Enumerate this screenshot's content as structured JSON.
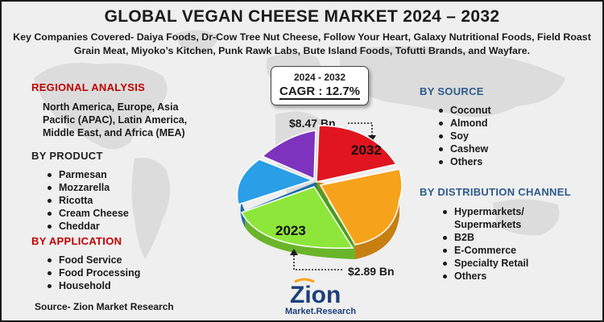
{
  "title": "GLOBAL VEGAN CHEESE MARKET 2024 – 2032",
  "subtitle": "Key Companies Covered- Daiya Foods, Dr-Cow Tree Nut Cheese, Follow Your Heart, Galaxy Nutritional Foods, Field Roast Grain Meat, Miyoko’s Kitchen, Punk Rawk Labs, Bute Island Foods, Tofutti Brands, and Wayfare.",
  "regional": {
    "heading": "REGIONAL ANALYSIS",
    "text": "North America, Europe, Asia Pacific (APAC), Latin America, Middle East, and Africa (MEA)"
  },
  "product": {
    "heading": "BY PRODUCT",
    "items": [
      "Parmesan",
      "Mozzarella",
      "Ricotta",
      "Cream Cheese",
      "Cheddar"
    ]
  },
  "application": {
    "heading": "BY APPLICATION",
    "items": [
      "Food Service",
      "Food Processing",
      "Household"
    ]
  },
  "source_segment": {
    "heading": "BY SOURCE",
    "items": [
      "Coconut",
      "Almond",
      "Soy",
      "Cashew",
      "Others"
    ]
  },
  "distribution": {
    "heading": "BY DISTRIBUTION CHANNEL",
    "items": [
      "Hypermarkets/ Supermarkets",
      "B2B",
      "E-Commerce",
      "Specialty Retail",
      "Others"
    ]
  },
  "cagr": {
    "years": "2024 - 2032",
    "value": "CAGR : 12.7%"
  },
  "values": {
    "v2032": "$8.47 Bn",
    "v2023": "$2.89 Bn"
  },
  "pie_labels": {
    "label2032": "2032",
    "label2023": "2023"
  },
  "footer": {
    "source": "Source- Zion Market Research"
  },
  "logo": {
    "word": "Zion",
    "sub": "Market.Research"
  },
  "colors": {
    "heading_red": "#c00000",
    "heading_blue": "#2e5a8a",
    "slice_red": "#e0151f",
    "slice_orange": "#f7a21b",
    "slice_green": "#8ee63a",
    "slice_blue": "#2a9ee6",
    "slice_purple": "#7d33bd"
  },
  "icons": [
    "world-map",
    "arrow-down-icon",
    "arrow-up-icon",
    "zion-logo"
  ]
}
